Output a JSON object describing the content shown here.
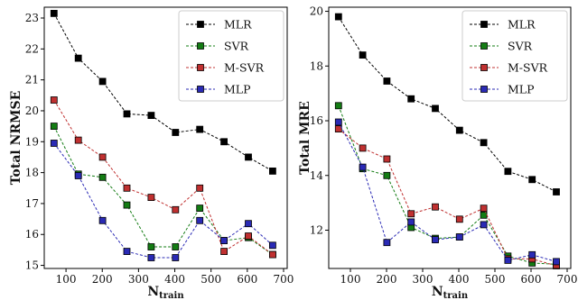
{
  "chart_data": [
    {
      "type": "line",
      "xlabel": "N",
      "xlabel_sub": "train",
      "ylabel": "Total NRMSE",
      "xlim": [
        40,
        710
      ],
      "ylim": [
        14.9,
        23.35
      ],
      "x_ticks": [
        100,
        200,
        300,
        400,
        500,
        600,
        700
      ],
      "y_ticks": [
        15,
        16,
        17,
        18,
        19,
        20,
        21,
        22,
        23
      ],
      "x": [
        67,
        134,
        201,
        268,
        335,
        402,
        469,
        536,
        603,
        670
      ],
      "legend_position": "top-right",
      "series": [
        {
          "name": "MLR",
          "color": "#000000",
          "values": [
            23.15,
            21.7,
            20.95,
            19.9,
            19.85,
            19.3,
            19.4,
            19.0,
            18.5,
            18.05
          ]
        },
        {
          "name": "SVR",
          "color": "#137c13",
          "values": [
            19.5,
            17.95,
            17.85,
            16.95,
            15.6,
            15.6,
            16.85,
            15.8,
            15.9,
            15.35
          ]
        },
        {
          "name": "M-SVR",
          "color": "#c03030",
          "values": [
            20.35,
            19.05,
            18.5,
            17.5,
            17.2,
            16.8,
            17.5,
            15.45,
            15.95,
            15.35
          ]
        },
        {
          "name": "MLP",
          "color": "#2a2ab5",
          "values": [
            18.95,
            17.9,
            16.45,
            15.45,
            15.25,
            15.25,
            16.45,
            15.8,
            16.35,
            15.65
          ]
        }
      ]
    },
    {
      "type": "line",
      "xlabel": "N",
      "xlabel_sub": "train",
      "ylabel": "Total MRE",
      "xlim": [
        40,
        710
      ],
      "ylim": [
        10.6,
        20.15
      ],
      "x_ticks": [
        100,
        200,
        300,
        400,
        500,
        600,
        700
      ],
      "y_ticks": [
        12,
        14,
        16,
        18,
        20
      ],
      "x": [
        67,
        134,
        201,
        268,
        335,
        402,
        469,
        536,
        603,
        670
      ],
      "legend_position": "top-right",
      "series": [
        {
          "name": "MLR",
          "color": "#000000",
          "values": [
            19.8,
            18.4,
            17.45,
            16.8,
            16.45,
            15.65,
            15.2,
            14.15,
            13.85,
            13.4
          ]
        },
        {
          "name": "SVR",
          "color": "#137c13",
          "values": [
            16.55,
            14.25,
            14.0,
            12.1,
            11.7,
            11.75,
            12.55,
            11.05,
            10.8,
            10.75
          ]
        },
        {
          "name": "M-SVR",
          "color": "#c03030",
          "values": [
            15.7,
            15.0,
            14.6,
            12.6,
            12.85,
            12.4,
            12.8,
            10.95,
            10.95,
            10.7
          ]
        },
        {
          "name": "MLP",
          "color": "#2a2ab5",
          "values": [
            15.95,
            14.3,
            11.55,
            12.3,
            11.65,
            11.75,
            12.2,
            10.9,
            11.1,
            10.85
          ]
        }
      ]
    }
  ]
}
